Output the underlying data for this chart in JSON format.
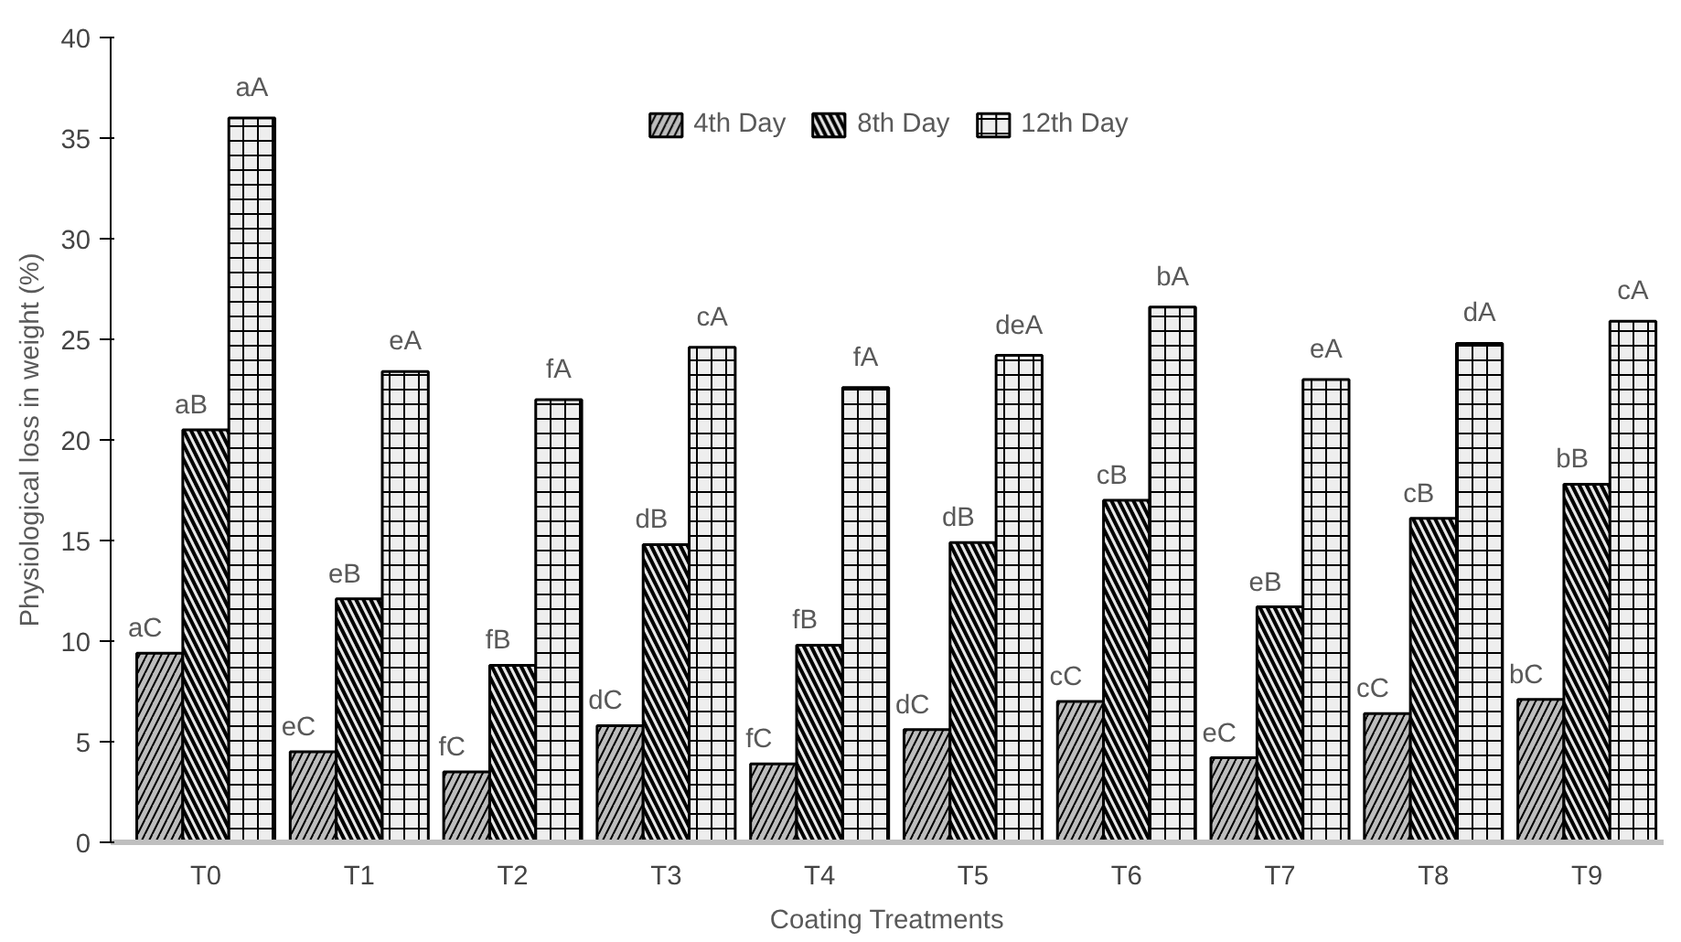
{
  "chart_data": {
    "type": "bar",
    "xlabel": "Coating Treatments",
    "ylabel": "Physiological loss in weight (%)",
    "categories": [
      "T0",
      "T1",
      "T2",
      "T3",
      "T4",
      "T5",
      "T6",
      "T7",
      "T8",
      "T9"
    ],
    "series": [
      {
        "name": "4th Day",
        "color": "#bdbdbd",
        "values": [
          9.4,
          4.5,
          3.5,
          5.8,
          3.9,
          5.6,
          7.0,
          4.2,
          6.4,
          7.1
        ],
        "value_labels": [
          "aC",
          "eC",
          "fC",
          "dC",
          "fC",
          "dC",
          "cC",
          "eC",
          "cC",
          "bC"
        ]
      },
      {
        "name": "8th Day",
        "color": "#e6e6e6",
        "values": [
          20.5,
          12.1,
          8.8,
          14.8,
          9.8,
          14.9,
          17.0,
          11.7,
          16.1,
          17.8
        ],
        "value_labels": [
          "aB",
          "eB",
          "fB",
          "dB",
          "fB",
          "dB",
          "cB",
          "eB",
          "cB",
          "bB"
        ]
      },
      {
        "name": "12th Day",
        "color": "#eeeeee",
        "values": [
          36.0,
          23.4,
          22.0,
          24.6,
          22.6,
          24.2,
          26.6,
          23.0,
          24.8,
          25.9
        ],
        "value_labels": [
          "aA",
          "eA",
          "fA",
          "cA",
          "fA",
          "deA",
          "bA",
          "eA",
          "dA",
          "cA"
        ]
      }
    ],
    "ylim": [
      0,
      40
    ],
    "yticks": [
      0,
      5,
      10,
      15,
      20,
      25,
      30,
      35,
      40
    ],
    "grid": false,
    "legend": "top"
  }
}
